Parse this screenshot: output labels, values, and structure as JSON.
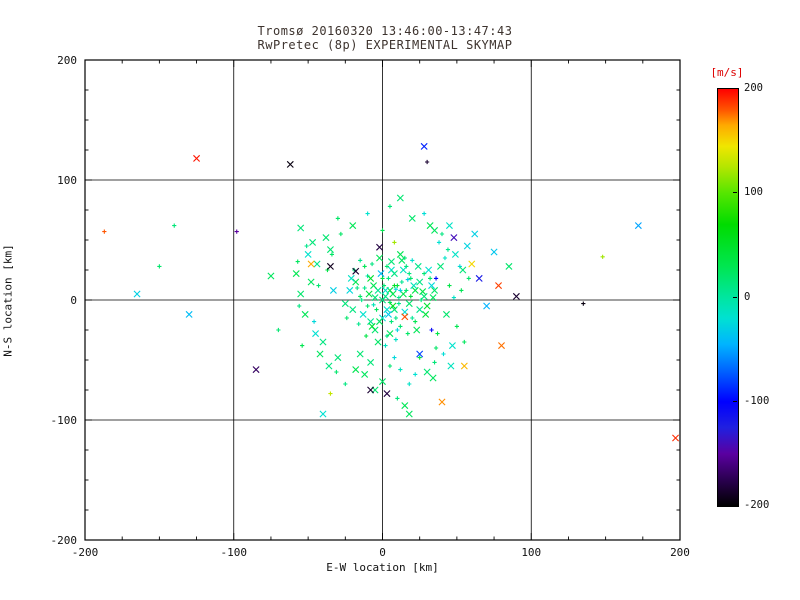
{
  "chart_data": {
    "type": "scatter",
    "title": "Tromsø 20160320 13:46:00-13:47:43",
    "subtitle": "RwPretec (8p) EXPERIMENTAL SKYMAP",
    "xlabel": "E-W location [km]",
    "ylabel": "N-S location [km]",
    "xlim": [
      -200,
      200
    ],
    "ylim": [
      -200,
      200
    ],
    "x_ticks": [
      -200,
      -100,
      0,
      100,
      200
    ],
    "y_ticks": [
      -200,
      -100,
      0,
      100,
      200
    ],
    "grid": true,
    "grid_lines_x": [
      -100,
      0,
      100
    ],
    "grid_lines_y": [
      -100,
      0,
      100
    ],
    "legend": "none",
    "colorbar": {
      "label": "[m/s]",
      "label_color": "#dd0000",
      "units": "m/s",
      "range": [
        -200,
        200
      ],
      "ticks": [
        200,
        100,
        0,
        -100,
        -200
      ],
      "stops": [
        [
          -200,
          "#000000"
        ],
        [
          -175,
          "#2a0050"
        ],
        [
          -150,
          "#5a00a0"
        ],
        [
          -125,
          "#2020e0"
        ],
        [
          -100,
          "#0000ff"
        ],
        [
          -70,
          "#0064ff"
        ],
        [
          -45,
          "#00b4ff"
        ],
        [
          -20,
          "#00e1d2"
        ],
        [
          0,
          "#00e6a0"
        ],
        [
          30,
          "#00e650"
        ],
        [
          70,
          "#00dc00"
        ],
        [
          100,
          "#55e600"
        ],
        [
          125,
          "#b4e600"
        ],
        [
          145,
          "#f0e600"
        ],
        [
          165,
          "#ffaa00"
        ],
        [
          180,
          "#ff5500"
        ],
        [
          200,
          "#ff0000"
        ]
      ]
    },
    "marker_legend": {
      "0": "plus (small echo)",
      "1": "cross (strong echo)"
    },
    "point_format": [
      "x_km",
      "y_km",
      "velocity_ms",
      "marker"
    ],
    "points": [
      [
        2,
        3,
        10,
        1
      ],
      [
        5,
        -2,
        25,
        0
      ],
      [
        -3,
        8,
        5,
        1
      ],
      [
        10,
        12,
        40,
        0
      ],
      [
        8,
        -8,
        15,
        1
      ],
      [
        -6,
        -4,
        -10,
        0
      ],
      [
        14,
        5,
        30,
        1
      ],
      [
        18,
        -3,
        20,
        1
      ],
      [
        -12,
        10,
        8,
        0
      ],
      [
        0,
        -15,
        -20,
        1
      ],
      [
        4,
        18,
        12,
        0
      ],
      [
        22,
        8,
        35,
        1
      ],
      [
        -8,
        -18,
        5,
        1
      ],
      [
        12,
        -22,
        18,
        0
      ],
      [
        6,
        25,
        -15,
        1
      ],
      [
        -15,
        3,
        22,
        0
      ],
      [
        25,
        15,
        10,
        1
      ],
      [
        3,
        -30,
        8,
        0
      ],
      [
        -2,
        35,
        28,
        1
      ],
      [
        16,
        28,
        15,
        0
      ],
      [
        -20,
        -8,
        12,
        1
      ],
      [
        30,
        -5,
        45,
        1
      ],
      [
        9,
        9,
        -25,
        0
      ],
      [
        -5,
        -25,
        20,
        1
      ],
      [
        20,
        -15,
        5,
        0
      ],
      [
        13,
        33,
        25,
        1
      ],
      [
        -10,
        20,
        -8,
        0
      ],
      [
        7,
        -5,
        55,
        1
      ],
      [
        28,
        22,
        18,
        0
      ],
      [
        -18,
        15,
        30,
        1
      ],
      [
        2,
        -38,
        -12,
        0
      ],
      [
        35,
        8,
        22,
        1
      ],
      [
        11,
        2,
        8,
        0
      ],
      [
        -25,
        -3,
        15,
        1
      ],
      [
        17,
        17,
        -30,
        0
      ],
      [
        5,
        8,
        35,
        1
      ],
      [
        -7,
        30,
        12,
        0
      ],
      [
        23,
        -25,
        28,
        1
      ],
      [
        1,
        12,
        18,
        0
      ],
      [
        -13,
        -12,
        -18,
        1
      ],
      [
        19,
        3,
        42,
        0
      ],
      [
        8,
        22,
        10,
        1
      ],
      [
        -4,
        -8,
        25,
        0
      ],
      [
        15,
        -10,
        -22,
        1
      ],
      [
        26,
        0,
        15,
        0
      ],
      [
        -9,
        5,
        38,
        1
      ],
      [
        3,
        28,
        20,
        0
      ],
      [
        21,
        12,
        -10,
        1
      ],
      [
        -16,
        -20,
        8,
        0
      ],
      [
        12,
        38,
        30,
        1
      ],
      [
        6,
        -18,
        15,
        0
      ],
      [
        -22,
        8,
        -25,
        1
      ],
      [
        32,
        18,
        22,
        0
      ],
      [
        0,
        0,
        12,
        1
      ],
      [
        -11,
        -30,
        35,
        0
      ],
      [
        24,
        28,
        8,
        1
      ],
      [
        9,
        -33,
        -15,
        0
      ],
      [
        -6,
        12,
        28,
        1
      ],
      [
        16,
        8,
        18,
        0
      ],
      [
        4,
        -12,
        -35,
        1
      ],
      [
        -19,
        25,
        15,
        0
      ],
      [
        29,
        -12,
        40,
        1
      ],
      [
        13,
        15,
        5,
        0
      ],
      [
        -3,
        -35,
        22,
        1
      ],
      [
        20,
        33,
        -18,
        0
      ],
      [
        7,
        5,
        30,
        1
      ],
      [
        -14,
        0,
        10,
        0
      ],
      [
        34,
        2,
        25,
        1
      ],
      [
        10,
        -25,
        -28,
        0
      ],
      [
        -8,
        18,
        45,
        1
      ],
      [
        18,
        22,
        12,
        0
      ],
      [
        2,
        8,
        -15,
        1
      ],
      [
        -24,
        -15,
        20,
        0
      ],
      [
        27,
        7,
        35,
        1
      ],
      [
        11,
        -3,
        8,
        0
      ],
      [
        -1,
        22,
        -40,
        1
      ],
      [
        15,
        35,
        18,
        0
      ],
      [
        5,
        -28,
        25,
        1
      ],
      [
        -17,
        10,
        12,
        0
      ],
      [
        31,
        25,
        -20,
        1
      ],
      [
        8,
        12,
        50,
        0
      ],
      [
        -5,
        2,
        15,
        1
      ],
      [
        22,
        -18,
        30,
        0
      ],
      [
        14,
        25,
        -12,
        1
      ],
      [
        -10,
        -5,
        20,
        0
      ],
      [
        25,
        -8,
        8,
        1
      ],
      [
        0,
        18,
        38,
        0
      ],
      [
        -21,
        18,
        -15,
        1
      ],
      [
        17,
        -28,
        22,
        0
      ],
      [
        6,
        32,
        15,
        1
      ],
      [
        -12,
        28,
        28,
        0
      ],
      [
        33,
        12,
        -25,
        1
      ],
      [
        9,
        -15,
        10,
        0
      ],
      [
        -7,
        -22,
        42,
        1
      ],
      [
        19,
        18,
        20,
        0
      ],
      [
        3,
        -8,
        -18,
        1
      ],
      [
        -15,
        33,
        8,
        0
      ],
      [
        28,
        3,
        15,
        1
      ],
      [
        12,
        8,
        -30,
        0
      ],
      [
        -2,
        -18,
        25,
        1
      ],
      [
        -35,
        42,
        18,
        1
      ],
      [
        42,
        35,
        -15,
        0
      ],
      [
        -48,
        15,
        25,
        1
      ],
      [
        50,
        -22,
        30,
        0
      ],
      [
        -40,
        -35,
        12,
        1
      ],
      [
        38,
        48,
        -20,
        0
      ],
      [
        -55,
        5,
        20,
        1
      ],
      [
        45,
        12,
        35,
        0
      ],
      [
        -30,
        -48,
        15,
        1
      ],
      [
        52,
        28,
        -25,
        0
      ],
      [
        -44,
        30,
        8,
        1
      ],
      [
        36,
        -40,
        22,
        0
      ],
      [
        -52,
        -12,
        28,
        1
      ],
      [
        48,
        2,
        -15,
        0
      ],
      [
        -38,
        52,
        18,
        1
      ],
      [
        55,
        -35,
        25,
        0
      ],
      [
        -45,
        -28,
        -20,
        1
      ],
      [
        40,
        55,
        12,
        0
      ],
      [
        -58,
        22,
        30,
        1
      ],
      [
        35,
        -52,
        15,
        0
      ],
      [
        -33,
        8,
        -30,
        1
      ],
      [
        58,
        18,
        20,
        0
      ],
      [
        -42,
        -45,
        25,
        1
      ],
      [
        44,
        42,
        8,
        0
      ],
      [
        -50,
        38,
        -18,
        1
      ],
      [
        37,
        -28,
        35,
        0
      ],
      [
        -36,
        -55,
        12,
        1
      ],
      [
        53,
        8,
        28,
        0
      ],
      [
        -47,
        48,
        15,
        1
      ],
      [
        41,
        -45,
        -22,
        0
      ],
      [
        30,
        -60,
        18,
        1
      ],
      [
        -28,
        55,
        22,
        0
      ],
      [
        46,
        -55,
        -12,
        1
      ],
      [
        -54,
        -38,
        30,
        0
      ],
      [
        39,
        28,
        15,
        1
      ],
      [
        -31,
        -60,
        20,
        0
      ],
      [
        57,
        45,
        -28,
        1
      ],
      [
        -43,
        12,
        18,
        0
      ],
      [
        34,
        -65,
        25,
        1
      ],
      [
        -56,
        -5,
        12,
        0
      ],
      [
        49,
        38,
        -15,
        1
      ],
      [
        -37,
        25,
        35,
        0
      ],
      [
        43,
        -12,
        20,
        1
      ],
      [
        -51,
        45,
        8,
        0
      ],
      [
        32,
        62,
        28,
        1
      ],
      [
        -46,
        -18,
        -25,
        0
      ],
      [
        54,
        25,
        15,
        1
      ],
      [
        -34,
        38,
        22,
        0
      ],
      [
        47,
        -38,
        -18,
        1
      ],
      [
        -57,
        32,
        25,
        0
      ],
      [
        5,
        -55,
        18,
        0
      ],
      [
        -12,
        -62,
        25,
        1
      ],
      [
        18,
        -70,
        -15,
        0
      ],
      [
        -5,
        -75,
        20,
        1
      ],
      [
        10,
        -82,
        15,
        0
      ],
      [
        -18,
        -58,
        30,
        1
      ],
      [
        22,
        -62,
        -20,
        0
      ],
      [
        0,
        -68,
        22,
        1
      ],
      [
        -25,
        -70,
        12,
        0
      ],
      [
        15,
        -88,
        28,
        1
      ],
      [
        8,
        -48,
        -25,
        0
      ],
      [
        -15,
        -45,
        18,
        1
      ],
      [
        25,
        -48,
        35,
        0
      ],
      [
        -8,
        -52,
        15,
        1
      ],
      [
        12,
        -58,
        -12,
        0
      ],
      [
        20,
        68,
        20,
        1
      ],
      [
        -10,
        72,
        -18,
        0
      ],
      [
        35,
        58,
        25,
        1
      ],
      [
        5,
        78,
        15,
        0
      ],
      [
        -20,
        62,
        28,
        1
      ],
      [
        28,
        72,
        -22,
        0
      ],
      [
        12,
        85,
        18,
        1
      ],
      [
        -30,
        68,
        22,
        0
      ],
      [
        45,
        62,
        -15,
        1
      ],
      [
        0,
        58,
        30,
        0
      ],
      [
        -125,
        118,
        195,
        1
      ],
      [
        -62,
        113,
        -195,
        1
      ],
      [
        28,
        128,
        -90,
        1
      ],
      [
        30,
        115,
        -185,
        0
      ],
      [
        -187,
        57,
        180,
        0
      ],
      [
        -165,
        5,
        -30,
        1
      ],
      [
        -150,
        28,
        20,
        0
      ],
      [
        -130,
        -12,
        -40,
        1
      ],
      [
        -140,
        62,
        15,
        0
      ],
      [
        78,
        12,
        185,
        1
      ],
      [
        90,
        3,
        -185,
        1
      ],
      [
        80,
        -38,
        175,
        1
      ],
      [
        135,
        -3,
        -195,
        0
      ],
      [
        75,
        40,
        -35,
        1
      ],
      [
        197,
        -115,
        190,
        1
      ],
      [
        148,
        36,
        120,
        0
      ],
      [
        -85,
        -58,
        -170,
        1
      ],
      [
        -98,
        57,
        -150,
        0
      ],
      [
        -48,
        30,
        165,
        1
      ],
      [
        60,
        30,
        150,
        1
      ],
      [
        55,
        -55,
        160,
        1
      ],
      [
        40,
        -85,
        170,
        1
      ],
      [
        -35,
        -78,
        130,
        0
      ],
      [
        65,
        18,
        -120,
        1
      ],
      [
        25,
        -45,
        -80,
        1
      ],
      [
        36,
        18,
        -100,
        0
      ],
      [
        48,
        52,
        -140,
        1
      ],
      [
        8,
        48,
        120,
        0
      ],
      [
        -55,
        60,
        15,
        1
      ],
      [
        70,
        -5,
        -45,
        1
      ],
      [
        85,
        28,
        20,
        1
      ],
      [
        -75,
        20,
        25,
        1
      ],
      [
        -70,
        -25,
        18,
        0
      ],
      [
        -8,
        -75,
        -185,
        1
      ],
      [
        3,
        -78,
        -180,
        1
      ],
      [
        -40,
        -95,
        -20,
        1
      ],
      [
        18,
        -95,
        25,
        1
      ],
      [
        -35,
        28,
        -190,
        1
      ],
      [
        -18,
        24,
        -185,
        1
      ],
      [
        -2,
        44,
        -180,
        1
      ],
      [
        15,
        -14,
        182,
        1
      ],
      [
        33,
        -25,
        -110,
        0
      ],
      [
        62,
        55,
        -30,
        1
      ],
      [
        172,
        62,
        -50,
        1
      ]
    ]
  }
}
